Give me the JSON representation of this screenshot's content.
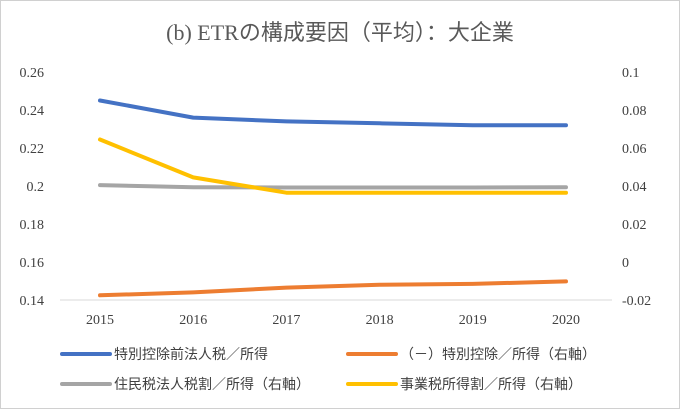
{
  "chart_data": {
    "type": "line",
    "title": "(b) ETRの構成要因（平均）：大企業",
    "x": [
      "2015",
      "2016",
      "2017",
      "2018",
      "2019",
      "2020"
    ],
    "y_left": {
      "range": [
        0.14,
        0.26
      ],
      "ticks": [
        "0.14",
        "0.16",
        "0.18",
        "0.2",
        "0.22",
        "0.24",
        "0.26"
      ]
    },
    "y_right": {
      "range": [
        -0.02,
        0.1
      ],
      "ticks": [
        "-0.02",
        "0",
        "0.02",
        "0.04",
        "0.06",
        "0.08",
        "0.1"
      ]
    },
    "gridlines": false,
    "legend_position": "bottom",
    "series": [
      {
        "name": "特別控除前法人税／所得",
        "axis": "left",
        "color": "#4472c4",
        "values": [
          0.245,
          0.236,
          0.234,
          0.233,
          0.232,
          0.232
        ]
      },
      {
        "name": "（－）特別控除／所得（右軸）",
        "axis": "right",
        "color": "#ed7d31",
        "values": [
          -0.0175,
          -0.016,
          -0.0135,
          -0.012,
          -0.0115,
          -0.0102
        ]
      },
      {
        "name": "住民税法人税割／所得（右軸）",
        "axis": "right",
        "color": "#a5a5a5",
        "values": [
          0.0405,
          0.0393,
          0.0392,
          0.0392,
          0.0392,
          0.0393
        ]
      },
      {
        "name": "事業税所得割／所得（右軸）",
        "axis": "right",
        "color": "#ffc000",
        "values": [
          0.0645,
          0.0445,
          0.0365,
          0.0365,
          0.0365,
          0.0365
        ]
      }
    ]
  }
}
